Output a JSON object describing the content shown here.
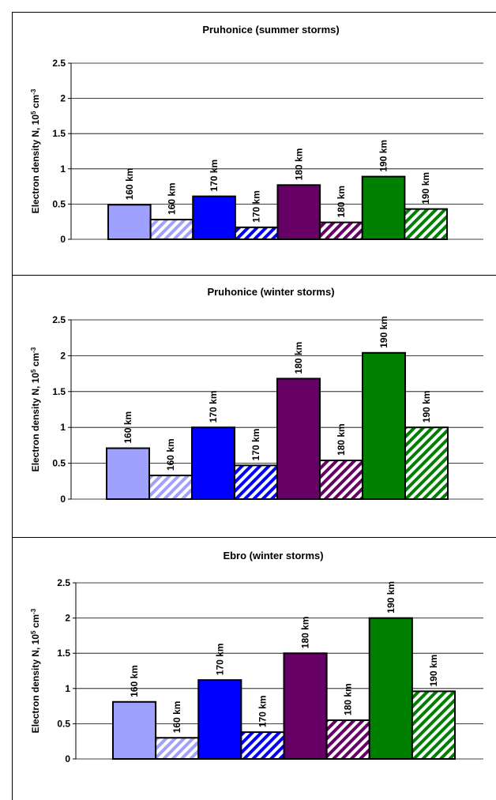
{
  "chart_data": [
    {
      "type": "bar",
      "title": "Pruhonice (summer storms)",
      "ylabel": [
        "Electron density N, 10",
        "5",
        " cm",
        "-3"
      ],
      "categories": [
        "160 km",
        "160 km",
        "170 km",
        "170 km",
        "180 km",
        "180 km",
        "190 km",
        "190 km"
      ],
      "values": [
        0.49,
        0.28,
        0.61,
        0.17,
        0.77,
        0.24,
        0.89,
        0.43
      ],
      "colors": [
        "#a0a0ff",
        "#a0a0ff",
        "#0000ff",
        "#0000ff",
        "#660066",
        "#660066",
        "#008000",
        "#008000"
      ],
      "hatched": [
        false,
        true,
        false,
        true,
        false,
        true,
        false,
        true
      ],
      "ylim": [
        0,
        2.5
      ],
      "yticks": [
        0,
        0.5,
        1,
        1.5,
        2,
        2.5
      ],
      "grid": true
    },
    {
      "type": "bar",
      "title": "Pruhonice (winter storms)",
      "ylabel": [
        "Electron density N, 10",
        "5",
        " cm",
        "-3"
      ],
      "categories": [
        "160 km",
        "160 km",
        "170 km",
        "170 km",
        "180 km",
        "180 km",
        "190 km",
        "190 km"
      ],
      "values": [
        0.71,
        0.33,
        1.0,
        0.47,
        1.68,
        0.54,
        2.04,
        1.0
      ],
      "colors": [
        "#a0a0ff",
        "#a0a0ff",
        "#0000ff",
        "#0000ff",
        "#660066",
        "#660066",
        "#008000",
        "#008000"
      ],
      "hatched": [
        false,
        true,
        false,
        true,
        false,
        true,
        false,
        true
      ],
      "ylim": [
        0,
        2.5
      ],
      "yticks": [
        0,
        0.5,
        1,
        1.5,
        2,
        2.5
      ],
      "grid": true
    },
    {
      "type": "bar",
      "title": "Ebro (winter storms)",
      "ylabel": [
        "Electron density N, 10",
        "5",
        " cm",
        "-3"
      ],
      "categories": [
        "160 km",
        "160 km",
        "170 km",
        "170 km",
        "180 km",
        "180 km",
        "190 km",
        "190 km"
      ],
      "values": [
        0.81,
        0.3,
        1.12,
        0.38,
        1.5,
        0.55,
        2.0,
        0.96
      ],
      "colors": [
        "#a0a0ff",
        "#a0a0ff",
        "#0000ff",
        "#0000ff",
        "#660066",
        "#660066",
        "#008000",
        "#008000"
      ],
      "hatched": [
        false,
        true,
        false,
        true,
        false,
        true,
        false,
        true
      ],
      "ylim": [
        0,
        2.5
      ],
      "yticks": [
        0,
        0.5,
        1,
        1.5,
        2,
        2.5
      ],
      "grid": true
    }
  ]
}
